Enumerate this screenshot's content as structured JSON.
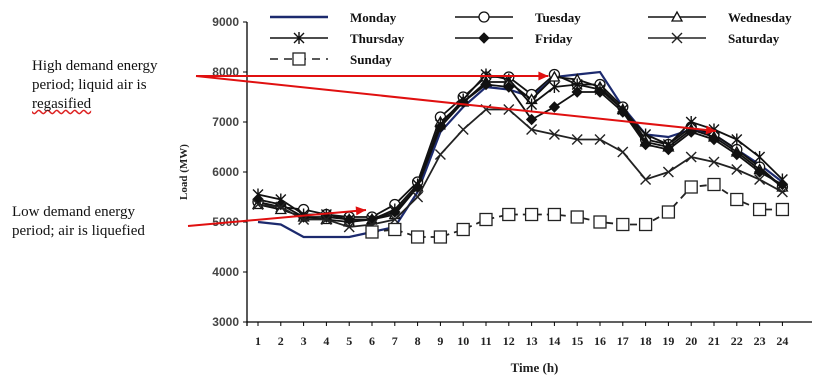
{
  "chart_data": {
    "type": "line",
    "xlabel": "Time (h)",
    "ylabel": "Load (MW)",
    "x": [
      1,
      2,
      3,
      4,
      5,
      6,
      7,
      8,
      9,
      10,
      11,
      12,
      13,
      14,
      15,
      16,
      17,
      18,
      19,
      20,
      21,
      22,
      23,
      24
    ],
    "ylim": [
      3000,
      9000
    ],
    "yticks": [
      3000,
      4000,
      5000,
      6000,
      7000,
      8000,
      9000
    ],
    "grid": false,
    "legend_position": "top",
    "series": [
      {
        "name": "Monday",
        "color": "#1c2a6e",
        "marker": "none",
        "values": [
          5000,
          4950,
          4700,
          4700,
          4700,
          4800,
          4900,
          5600,
          6800,
          7300,
          7700,
          7650,
          7500,
          7900,
          7950,
          8000,
          7300,
          6750,
          6700,
          6850,
          6750,
          6450,
          6150,
          5800
        ]
      },
      {
        "name": "Tuesday",
        "color": "#111111",
        "marker": "circle",
        "values": [
          5400,
          5300,
          5250,
          5150,
          5100,
          5100,
          5350,
          5800,
          7100,
          7500,
          7900,
          7900,
          7550,
          7950,
          7750,
          7750,
          7300,
          6650,
          6550,
          6900,
          6750,
          6450,
          6100,
          5700
        ]
      },
      {
        "name": "Wednesday",
        "color": "#111111",
        "marker": "triangle",
        "values": [
          5350,
          5250,
          5100,
          5050,
          5000,
          5050,
          5150,
          5700,
          7000,
          7400,
          7800,
          7800,
          7450,
          7900,
          7850,
          7700,
          7250,
          6600,
          6500,
          6850,
          6700,
          6400,
          6050,
          5700
        ]
      },
      {
        "name": "Thursday",
        "color": "#111111",
        "marker": "asterisk",
        "values": [
          5550,
          5450,
          5150,
          5150,
          5050,
          5050,
          5250,
          5750,
          6950,
          7450,
          7950,
          7850,
          7350,
          7700,
          7750,
          7650,
          7250,
          6750,
          6550,
          7000,
          6850,
          6650,
          6300,
          5850
        ]
      },
      {
        "name": "Friday",
        "color": "#111111",
        "marker": "diamond",
        "values": [
          5450,
          5350,
          5100,
          5100,
          5050,
          5050,
          5200,
          5700,
          6900,
          7400,
          7750,
          7700,
          7050,
          7300,
          7600,
          7600,
          7200,
          6550,
          6450,
          6800,
          6650,
          6350,
          6000,
          5750
        ]
      },
      {
        "name": "Saturday",
        "color": "#222222",
        "marker": "x",
        "values": [
          5350,
          5300,
          5050,
          5050,
          4900,
          4950,
          5050,
          5500,
          6350,
          6850,
          7250,
          7250,
          6850,
          6750,
          6650,
          6650,
          6400,
          5850,
          6000,
          6300,
          6200,
          6050,
          5850,
          5600
        ]
      },
      {
        "name": "Sunday",
        "color": "#222222",
        "marker": "square",
        "dashed": true,
        "values": [
          null,
          null,
          null,
          null,
          null,
          4800,
          4850,
          4700,
          4700,
          4850,
          5050,
          5150,
          5150,
          5150,
          5100,
          5000,
          4950,
          4950,
          5200,
          5700,
          5750,
          5450,
          5250,
          5250
        ]
      }
    ],
    "annotations": [
      {
        "text_lines": [
          "High demand energy",
          "period; liquid air is",
          "regasified"
        ],
        "arrows_to_hours": [
          14,
          21
        ],
        "arrow_color": "#e01010"
      },
      {
        "text_lines": [
          "Low demand energy",
          "period; air is liquefied"
        ],
        "arrows_to_hours": [
          6
        ],
        "arrow_color": "#e01010"
      }
    ]
  }
}
